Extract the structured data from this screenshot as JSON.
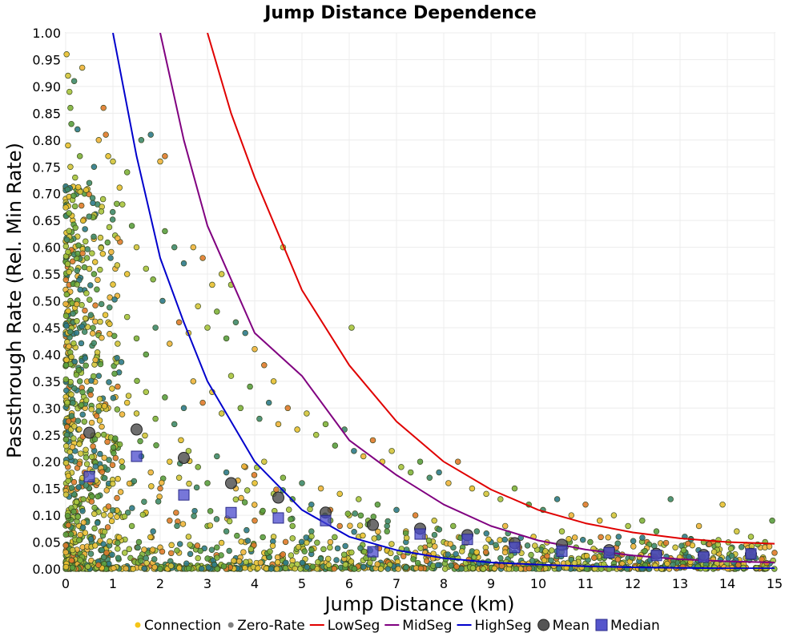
{
  "chart_data": {
    "type": "scatter",
    "title": "Jump Distance Dependence",
    "xlabel": "Jump Distance (km)",
    "ylabel": "Passthrough Rate (Rel. Min Rate)",
    "xlim": [
      0,
      15
    ],
    "ylim": [
      0,
      1
    ],
    "x_ticks": [
      "0",
      "1",
      "2",
      "3",
      "4",
      "5",
      "6",
      "7",
      "8",
      "9",
      "10",
      "11",
      "12",
      "13",
      "14",
      "15"
    ],
    "y_ticks": [
      "0.00",
      "0.05",
      "0.10",
      "0.15",
      "0.20",
      "0.25",
      "0.30",
      "0.35",
      "0.40",
      "0.45",
      "0.50",
      "0.55",
      "0.60",
      "0.65",
      "0.70",
      "0.75",
      "0.80",
      "0.85",
      "0.90",
      "0.95",
      "1.00"
    ],
    "grid": true,
    "legend_position": "bottom",
    "legend": [
      {
        "label": "Connection",
        "kind": "dot",
        "color": "#f5c518"
      },
      {
        "label": "Zero-Rate",
        "kind": "dot",
        "color": "#808080"
      },
      {
        "label": "LowSeg",
        "kind": "line",
        "color": "#e00000"
      },
      {
        "label": "MidSeg",
        "kind": "line",
        "color": "#800080"
      },
      {
        "label": "HighSeg",
        "kind": "line",
        "color": "#0000cc"
      },
      {
        "label": "Mean",
        "kind": "circle",
        "color": "#555555"
      },
      {
        "label": "Median",
        "kind": "square",
        "color": "#5555cc"
      }
    ],
    "curves": [
      {
        "name": "LowSeg",
        "color": "#e00000",
        "points": [
          [
            3.0,
            1.0
          ],
          [
            3.5,
            0.85
          ],
          [
            4,
            0.73
          ],
          [
            5,
            0.52
          ],
          [
            6,
            0.38
          ],
          [
            7,
            0.275
          ],
          [
            8,
            0.2
          ],
          [
            9,
            0.148
          ],
          [
            10,
            0.11
          ],
          [
            11,
            0.085
          ],
          [
            12,
            0.068
          ],
          [
            13,
            0.057
          ],
          [
            14,
            0.05
          ],
          [
            15,
            0.047
          ]
        ]
      },
      {
        "name": "MidSeg",
        "color": "#800080",
        "points": [
          [
            2.0,
            1.0
          ],
          [
            2.5,
            0.8
          ],
          [
            3,
            0.64
          ],
          [
            4,
            0.44
          ],
          [
            5,
            0.36
          ],
          [
            6,
            0.24
          ],
          [
            7,
            0.175
          ],
          [
            8,
            0.12
          ],
          [
            9,
            0.08
          ],
          [
            10,
            0.053
          ],
          [
            11,
            0.036
          ],
          [
            12,
            0.025
          ],
          [
            13,
            0.018
          ],
          [
            14,
            0.014
          ],
          [
            15,
            0.012
          ]
        ]
      },
      {
        "name": "HighSeg",
        "color": "#0000cc",
        "points": [
          [
            1.0,
            1.0
          ],
          [
            1.5,
            0.77
          ],
          [
            2,
            0.58
          ],
          [
            2.5,
            0.46
          ],
          [
            3,
            0.35
          ],
          [
            4,
            0.2
          ],
          [
            5,
            0.11
          ],
          [
            6,
            0.06
          ],
          [
            7,
            0.035
          ],
          [
            8,
            0.02
          ],
          [
            9,
            0.012
          ],
          [
            10,
            0.008
          ],
          [
            11,
            0.005
          ],
          [
            12,
            0.003
          ],
          [
            13,
            0.002
          ],
          [
            14,
            0.001
          ],
          [
            15,
            0.001
          ]
        ]
      }
    ],
    "mean": {
      "x": [
        0.5,
        1.5,
        2.5,
        3.5,
        4.5,
        5.5,
        6.5,
        7.5,
        8.5,
        9.5,
        10.5,
        11.5,
        12.5,
        13.5,
        14.5
      ],
      "y": [
        0.254,
        0.26,
        0.207,
        0.16,
        0.133,
        0.105,
        0.082,
        0.075,
        0.063,
        0.048,
        0.045,
        0.035,
        0.028,
        0.026,
        0.028
      ]
    },
    "median": {
      "x": [
        0.5,
        1.5,
        2.5,
        3.5,
        4.5,
        5.5,
        6.5,
        7.5,
        8.5,
        9.5,
        10.5,
        11.5,
        12.5,
        13.5,
        14.5
      ],
      "y": [
        0.172,
        0.21,
        0.138,
        0.105,
        0.095,
        0.09,
        0.032,
        0.065,
        0.055,
        0.04,
        0.033,
        0.03,
        0.025,
        0.022,
        0.028
      ]
    },
    "connections_note": "Dense cloud of several thousand connection points; highest density at 0–2 km and near 0.00, decaying with distance.",
    "connections": [
      [
        0.02,
        0.96
      ],
      [
        0.05,
        0.92
      ],
      [
        0.08,
        0.89
      ],
      [
        0.1,
        0.86
      ],
      [
        0.12,
        0.83
      ],
      [
        0.18,
        0.91
      ],
      [
        0.25,
        0.82
      ],
      [
        0.35,
        0.935
      ],
      [
        0.8,
        0.86
      ],
      [
        0.05,
        0.79
      ],
      [
        0.1,
        0.75
      ],
      [
        0.2,
        0.73
      ],
      [
        0.3,
        0.77
      ],
      [
        0.4,
        0.7
      ],
      [
        0.5,
        0.72
      ],
      [
        0.6,
        0.75
      ],
      [
        0.7,
        0.8
      ],
      [
        0.85,
        0.81
      ],
      [
        0.9,
        0.77
      ],
      [
        1.0,
        0.76
      ],
      [
        1.2,
        0.68
      ],
      [
        1.3,
        0.74
      ],
      [
        1.4,
        0.64
      ],
      [
        1.6,
        0.8
      ],
      [
        1.8,
        0.81
      ],
      [
        2.0,
        0.76
      ],
      [
        2.1,
        0.77
      ],
      [
        0.15,
        0.65
      ],
      [
        0.25,
        0.62
      ],
      [
        0.35,
        0.6
      ],
      [
        0.45,
        0.58
      ],
      [
        0.6,
        0.55
      ],
      [
        0.75,
        0.6
      ],
      [
        0.95,
        0.58
      ],
      [
        1.05,
        0.56
      ],
      [
        1.15,
        0.61
      ],
      [
        1.3,
        0.55
      ],
      [
        1.5,
        0.6
      ],
      [
        1.7,
        0.56
      ],
      [
        1.85,
        0.54
      ],
      [
        2.1,
        0.63
      ],
      [
        2.3,
        0.6
      ],
      [
        2.5,
        0.57
      ],
      [
        2.7,
        0.6
      ],
      [
        2.9,
        0.58
      ],
      [
        3.1,
        0.53
      ],
      [
        3.3,
        0.55
      ],
      [
        3.5,
        0.53
      ],
      [
        0.1,
        0.5
      ],
      [
        0.2,
        0.48
      ],
      [
        0.3,
        0.45
      ],
      [
        0.4,
        0.52
      ],
      [
        0.55,
        0.47
      ],
      [
        0.7,
        0.44
      ],
      [
        0.9,
        0.46
      ],
      [
        1.1,
        0.42
      ],
      [
        1.3,
        0.47
      ],
      [
        1.5,
        0.43
      ],
      [
        1.7,
        0.4
      ],
      [
        1.9,
        0.45
      ],
      [
        2.05,
        0.5
      ],
      [
        2.2,
        0.42
      ],
      [
        2.4,
        0.46
      ],
      [
        2.6,
        0.44
      ],
      [
        2.8,
        0.49
      ],
      [
        3.0,
        0.45
      ],
      [
        3.2,
        0.48
      ],
      [
        3.4,
        0.43
      ],
      [
        3.6,
        0.46
      ],
      [
        3.8,
        0.44
      ],
      [
        4.0,
        0.41
      ],
      [
        4.2,
        0.38
      ],
      [
        4.4,
        0.35
      ],
      [
        4.6,
        0.6
      ],
      [
        6.05,
        0.45
      ],
      [
        0.15,
        0.38
      ],
      [
        0.3,
        0.35
      ],
      [
        0.5,
        0.33
      ],
      [
        0.7,
        0.36
      ],
      [
        0.9,
        0.3
      ],
      [
        1.1,
        0.34
      ],
      [
        1.3,
        0.31
      ],
      [
        1.5,
        0.29
      ],
      [
        1.7,
        0.33
      ],
      [
        1.9,
        0.28
      ],
      [
        2.1,
        0.32
      ],
      [
        2.3,
        0.27
      ],
      [
        2.5,
        0.3
      ],
      [
        2.7,
        0.35
      ],
      [
        2.9,
        0.31
      ],
      [
        3.1,
        0.33
      ],
      [
        3.3,
        0.29
      ],
      [
        3.5,
        0.36
      ],
      [
        3.7,
        0.3
      ],
      [
        3.9,
        0.34
      ],
      [
        4.1,
        0.28
      ],
      [
        4.3,
        0.31
      ],
      [
        4.5,
        0.27
      ],
      [
        4.7,
        0.3
      ],
      [
        4.9,
        0.26
      ],
      [
        5.1,
        0.29
      ],
      [
        5.3,
        0.25
      ],
      [
        5.5,
        0.27
      ],
      [
        5.7,
        0.23
      ],
      [
        5.9,
        0.26
      ],
      [
        6.1,
        0.22
      ],
      [
        6.3,
        0.21
      ],
      [
        6.5,
        0.24
      ],
      [
        6.7,
        0.2
      ],
      [
        6.9,
        0.22
      ],
      [
        7.1,
        0.19
      ],
      [
        7.3,
        0.18
      ],
      [
        7.5,
        0.2
      ],
      [
        7.7,
        0.17
      ],
      [
        7.9,
        0.18
      ],
      [
        8.1,
        0.16
      ],
      [
        8.3,
        0.2
      ],
      [
        8.6,
        0.15
      ],
      [
        8.9,
        0.14
      ],
      [
        9.2,
        0.13
      ],
      [
        9.5,
        0.15
      ],
      [
        9.8,
        0.12
      ],
      [
        10.1,
        0.11
      ],
      [
        10.4,
        0.13
      ],
      [
        10.7,
        0.1
      ],
      [
        11.0,
        0.12
      ],
      [
        11.3,
        0.09
      ],
      [
        11.6,
        0.1
      ],
      [
        11.9,
        0.08
      ],
      [
        12.2,
        0.09
      ],
      [
        12.5,
        0.07
      ],
      [
        12.8,
        0.13
      ],
      [
        13.1,
        0.06
      ],
      [
        13.4,
        0.08
      ],
      [
        13.7,
        0.05
      ],
      [
        13.9,
        0.12
      ],
      [
        14.2,
        0.07
      ],
      [
        14.5,
        0.06
      ],
      [
        14.8,
        0.05
      ],
      [
        14.95,
        0.09
      ],
      [
        0.1,
        0.25
      ],
      [
        0.2,
        0.22
      ],
      [
        0.3,
        0.2
      ],
      [
        0.4,
        0.18
      ],
      [
        0.5,
        0.15
      ],
      [
        0.6,
        0.2
      ],
      [
        0.8,
        0.17
      ],
      [
        1.0,
        0.22
      ],
      [
        1.2,
        0.19
      ],
      [
        1.4,
        0.16
      ],
      [
        1.6,
        0.21
      ],
      [
        1.8,
        0.18
      ],
      [
        2.0,
        0.15
      ],
      [
        2.2,
        0.2
      ],
      [
        2.4,
        0.17
      ],
      [
        2.6,
        0.22
      ],
      [
        2.8,
        0.19
      ],
      [
        3.0,
        0.16
      ],
      [
        3.2,
        0.21
      ],
      [
        3.4,
        0.18
      ],
      [
        3.6,
        0.15
      ],
      [
        3.8,
        0.19
      ],
      [
        4.0,
        0.16
      ],
      [
        4.2,
        0.2
      ],
      [
        4.4,
        0.14
      ],
      [
        4.6,
        0.17
      ],
      [
        4.8,
        0.13
      ],
      [
        5.0,
        0.16
      ],
      [
        5.2,
        0.12
      ],
      [
        5.4,
        0.15
      ],
      [
        5.6,
        0.11
      ],
      [
        5.8,
        0.14
      ],
      [
        6.0,
        0.1
      ],
      [
        6.2,
        0.13
      ],
      [
        6.4,
        0.09
      ],
      [
        6.6,
        0.12
      ],
      [
        6.8,
        0.08
      ],
      [
        7.0,
        0.11
      ],
      [
        7.2,
        0.07
      ],
      [
        7.4,
        0.1
      ],
      [
        7.6,
        0.06
      ],
      [
        7.8,
        0.09
      ],
      [
        8.0,
        0.05
      ],
      [
        8.2,
        0.08
      ],
      [
        8.4,
        0.04
      ],
      [
        8.7,
        0.07
      ],
      [
        9.0,
        0.05
      ],
      [
        9.3,
        0.08
      ],
      [
        9.6,
        0.04
      ],
      [
        9.9,
        0.06
      ],
      [
        10.2,
        0.03
      ],
      [
        10.5,
        0.07
      ],
      [
        10.8,
        0.04
      ],
      [
        11.1,
        0.05
      ],
      [
        11.4,
        0.03
      ],
      [
        11.7,
        0.06
      ],
      [
        12.0,
        0.02
      ],
      [
        12.3,
        0.05
      ],
      [
        12.6,
        0.03
      ],
      [
        12.9,
        0.04
      ],
      [
        13.2,
        0.02
      ],
      [
        13.5,
        0.05
      ],
      [
        13.8,
        0.03
      ],
      [
        14.1,
        0.04
      ],
      [
        14.4,
        0.02
      ],
      [
        14.7,
        0.04
      ],
      [
        15.0,
        0.03
      ],
      [
        0.05,
        0.1
      ],
      [
        0.15,
        0.08
      ],
      [
        0.25,
        0.12
      ],
      [
        0.35,
        0.06
      ],
      [
        0.45,
        0.09
      ],
      [
        0.55,
        0.05
      ],
      [
        0.65,
        0.11
      ],
      [
        0.75,
        0.07
      ],
      [
        0.85,
        0.04
      ],
      [
        0.95,
        0.1
      ],
      [
        1.1,
        0.06
      ],
      [
        1.25,
        0.03
      ],
      [
        1.4,
        0.08
      ],
      [
        1.55,
        0.05
      ],
      [
        1.7,
        0.02
      ],
      [
        1.85,
        0.07
      ],
      [
        2.0,
        0.04
      ],
      [
        2.2,
        0.09
      ],
      [
        2.4,
        0.03
      ],
      [
        2.6,
        0.06
      ],
      [
        2.8,
        0.02
      ],
      [
        3.0,
        0.08
      ],
      [
        3.2,
        0.04
      ],
      [
        3.4,
        0.07
      ],
      [
        3.6,
        0.02
      ],
      [
        3.8,
        0.05
      ],
      [
        4.0,
        0.09
      ],
      [
        4.2,
        0.03
      ],
      [
        4.4,
        0.06
      ],
      [
        4.6,
        0.02
      ],
      [
        4.8,
        0.08
      ],
      [
        5.0,
        0.04
      ],
      [
        5.2,
        0.07
      ],
      [
        5.4,
        0.02
      ],
      [
        5.6,
        0.05
      ],
      [
        5.8,
        0.08
      ],
      [
        6.0,
        0.03
      ],
      [
        6.2,
        0.06
      ],
      [
        6.4,
        0.02
      ],
      [
        6.6,
        0.04
      ],
      [
        6.8,
        0.07
      ],
      [
        7.0,
        0.02
      ],
      [
        7.2,
        0.05
      ],
      [
        7.4,
        0.03
      ],
      [
        7.6,
        0.04
      ],
      [
        7.8,
        0.02
      ],
      [
        8.0,
        0.03
      ],
      [
        8.3,
        0.02
      ],
      [
        8.6,
        0.03
      ],
      [
        8.9,
        0.01
      ],
      [
        9.2,
        0.02
      ],
      [
        9.5,
        0.03
      ],
      [
        9.8,
        0.01
      ],
      [
        10.1,
        0.02
      ],
      [
        10.4,
        0.01
      ],
      [
        10.7,
        0.02
      ],
      [
        11.0,
        0.01
      ],
      [
        11.3,
        0.02
      ],
      [
        11.6,
        0.01
      ],
      [
        11.9,
        0.02
      ],
      [
        12.2,
        0.01
      ],
      [
        12.5,
        0.01
      ],
      [
        12.8,
        0.02
      ],
      [
        13.1,
        0.01
      ],
      [
        13.4,
        0.01
      ],
      [
        13.7,
        0.02
      ],
      [
        14.0,
        0.01
      ],
      [
        14.3,
        0.01
      ],
      [
        14.6,
        0.02
      ],
      [
        14.9,
        0.01
      ],
      [
        0.02,
        0.005
      ],
      [
        0.1,
        0.003
      ],
      [
        0.2,
        0.008
      ],
      [
        0.3,
        0.004
      ],
      [
        0.5,
        0.006
      ],
      [
        0.7,
        0.002
      ],
      [
        0.9,
        0.007
      ],
      [
        1.1,
        0.003
      ],
      [
        1.3,
        0.005
      ],
      [
        1.5,
        0.002
      ],
      [
        1.8,
        0.006
      ],
      [
        2.1,
        0.003
      ],
      [
        2.4,
        0.005
      ],
      [
        2.7,
        0.002
      ],
      [
        3.0,
        0.004
      ],
      [
        3.3,
        0.006
      ],
      [
        3.6,
        0.002
      ],
      [
        3.9,
        0.005
      ],
      [
        4.2,
        0.003
      ],
      [
        4.5,
        0.004
      ],
      [
        4.8,
        0.002
      ],
      [
        5.1,
        0.005
      ],
      [
        5.4,
        0.003
      ],
      [
        5.7,
        0.004
      ],
      [
        6.0,
        0.002
      ],
      [
        6.3,
        0.003
      ],
      [
        6.6,
        0.005
      ],
      [
        6.9,
        0.002
      ],
      [
        7.2,
        0.004
      ],
      [
        7.5,
        0.003
      ],
      [
        7.8,
        0.002
      ],
      [
        8.1,
        0.004
      ],
      [
        8.4,
        0.002
      ],
      [
        8.7,
        0.003
      ],
      [
        9.0,
        0.002
      ],
      [
        9.4,
        0.003
      ],
      [
        9.8,
        0.002
      ],
      [
        10.2,
        0.003
      ],
      [
        10.6,
        0.002
      ],
      [
        11.0,
        0.003
      ],
      [
        11.4,
        0.002
      ],
      [
        11.8,
        0.002
      ],
      [
        12.2,
        0.003
      ],
      [
        12.6,
        0.002
      ],
      [
        13.0,
        0.002
      ],
      [
        13.4,
        0.003
      ],
      [
        13.8,
        0.002
      ],
      [
        14.2,
        0.002
      ],
      [
        14.6,
        0.002
      ]
    ]
  }
}
